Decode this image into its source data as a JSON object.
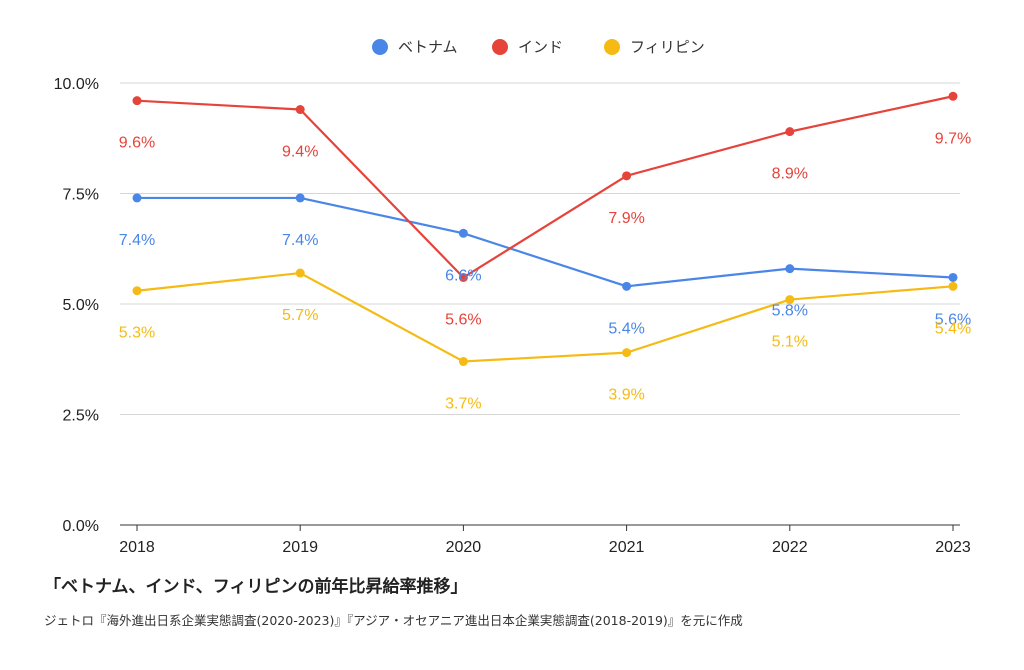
{
  "chart_data": {
    "type": "line",
    "x": [
      "2018",
      "2019",
      "2020",
      "2021",
      "2022",
      "2023"
    ],
    "series": [
      {
        "name": "ベトナム",
        "color": "#4a86e8",
        "values": [
          7.4,
          7.4,
          6.6,
          5.4,
          5.8,
          5.6
        ],
        "labels": [
          "7.4%",
          "7.4%",
          "6.6%",
          "5.4%",
          "5.8%",
          "5.6%"
        ]
      },
      {
        "name": "インド",
        "color": "#e6433a",
        "values": [
          9.6,
          9.4,
          5.6,
          7.9,
          8.9,
          9.7
        ],
        "labels": [
          "9.6%",
          "9.4%",
          "5.6%",
          "7.9%",
          "8.9%",
          "9.7%"
        ]
      },
      {
        "name": "フィリピン",
        "color": "#f5bb14",
        "values": [
          5.3,
          5.7,
          3.7,
          3.9,
          5.1,
          5.4
        ],
        "labels": [
          "5.3%",
          "5.7%",
          "3.7%",
          "3.9%",
          "5.1%",
          "5.4%"
        ]
      }
    ],
    "ylim": [
      0,
      10
    ],
    "yticks": [
      0,
      2.5,
      5,
      7.5,
      10
    ],
    "ytick_labels": [
      "0.0%",
      "2.5%",
      "5.0%",
      "7.5%",
      "10.0%"
    ],
    "grid": true,
    "legend": "top-center"
  },
  "caption": {
    "title": "「ベトナム、インド、フィリピンの前年比昇給率推移」",
    "source": "ジェトロ『海外進出日系企業実態調査(2020-2023)』『アジア・オセアニア進出日本企業実態調査(2018-2019)』を元に作成"
  }
}
